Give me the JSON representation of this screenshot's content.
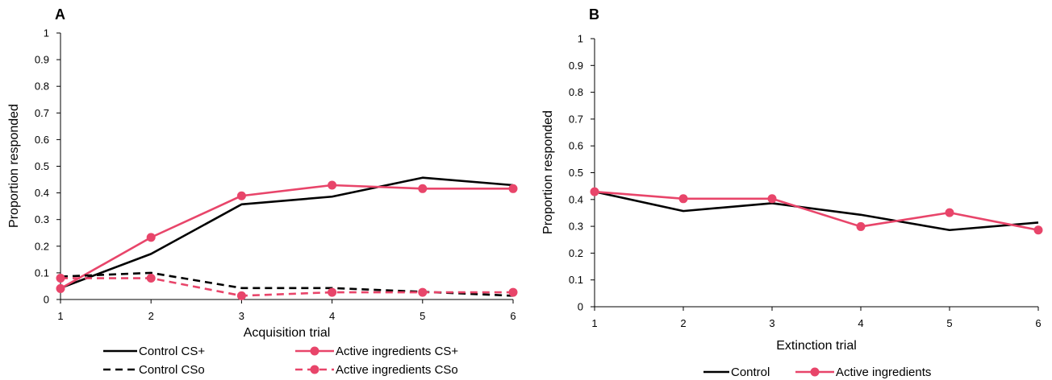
{
  "colors": {
    "control": "#000000",
    "active": "#e8456a"
  },
  "chart_data": [
    {
      "type": "line",
      "panel_label": "A",
      "xlabel": "Acquisition trial",
      "ylabel": "Proportion responded",
      "x": [
        1,
        2,
        3,
        4,
        5,
        6
      ],
      "ylim": [
        0,
        1
      ],
      "yticks": [
        "0",
        "0.1",
        "0.2",
        "0.3",
        "0.4",
        "0.5",
        "0.6",
        "0.7",
        "0.8",
        "0.9",
        "1"
      ],
      "xticks": [
        "1",
        "2",
        "3",
        "4",
        "5",
        "6"
      ],
      "grid": false,
      "legend_position": "bottom",
      "series": [
        {
          "name": "Control CS+",
          "values": [
            0.043,
            0.171,
            0.357,
            0.386,
            0.457,
            0.429
          ],
          "color": "#000000",
          "dashed": false,
          "markers": false
        },
        {
          "name": "Active ingredients CS+",
          "values": [
            0.041,
            0.233,
            0.389,
            0.429,
            0.416,
            0.416
          ],
          "color": "#e8456a",
          "dashed": false,
          "markers": true
        },
        {
          "name": "Control CSo",
          "values": [
            0.086,
            0.1,
            0.043,
            0.043,
            0.029,
            0.014
          ],
          "color": "#000000",
          "dashed": true,
          "markers": false
        },
        {
          "name": "Active ingredients CSo",
          "values": [
            0.08,
            0.08,
            0.014,
            0.027,
            0.027,
            0.027
          ],
          "color": "#e8456a",
          "dashed": true,
          "markers": true
        }
      ]
    },
    {
      "type": "line",
      "panel_label": "B",
      "xlabel": "Extinction trial",
      "ylabel": "Proportion responded",
      "x": [
        1,
        2,
        3,
        4,
        5,
        6
      ],
      "ylim": [
        0,
        1
      ],
      "yticks": [
        "0",
        "0.1",
        "0.2",
        "0.3",
        "0.4",
        "0.5",
        "0.6",
        "0.7",
        "0.8",
        "0.9",
        "1"
      ],
      "xticks": [
        "1",
        "2",
        "3",
        "4",
        "5",
        "6"
      ],
      "grid": false,
      "legend_position": "bottom",
      "series": [
        {
          "name": "Control",
          "values": [
            0.429,
            0.357,
            0.386,
            0.343,
            0.286,
            0.314
          ],
          "color": "#000000",
          "dashed": false,
          "markers": false
        },
        {
          "name": "Active ingredients",
          "values": [
            0.429,
            0.403,
            0.403,
            0.299,
            0.351,
            0.286
          ],
          "color": "#e8456a",
          "dashed": false,
          "markers": true
        }
      ]
    }
  ]
}
